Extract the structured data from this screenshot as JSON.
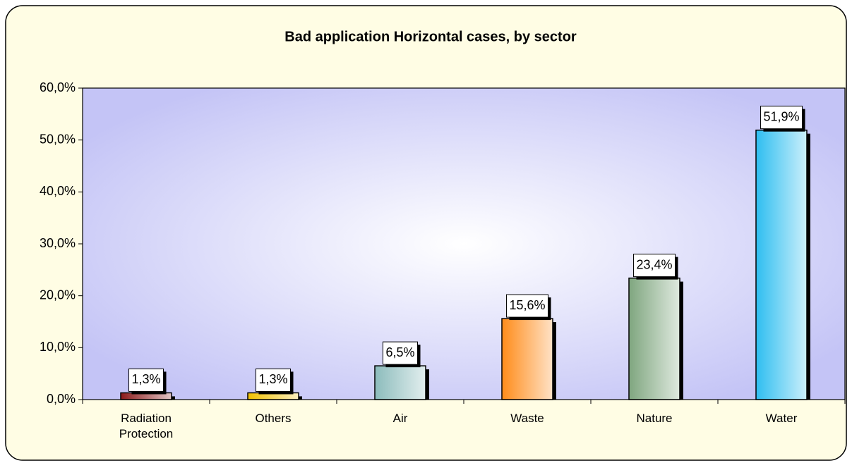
{
  "chart_data": {
    "type": "bar",
    "title": "Bad application Horizontal cases, by sector",
    "categories": [
      "Radiation Protection",
      "Others",
      "Air",
      "Waste",
      "Nature",
      "Water"
    ],
    "values": [
      1.3,
      1.3,
      6.5,
      15.6,
      23.4,
      51.9
    ],
    "value_labels": [
      "1,3%",
      "1,3%",
      "6,5%",
      "15,6%",
      "23,4%",
      "51,9%"
    ],
    "colors": [
      "#8b1a1a",
      "#f0c000",
      "#8cbcbc",
      "#ff8c1a",
      "#7fa67f",
      "#2ebef0"
    ],
    "ylim": [
      0,
      60
    ],
    "yticks": [
      {
        "value": 0,
        "label": "0,0%"
      },
      {
        "value": 10,
        "label": "10,0%"
      },
      {
        "value": 20,
        "label": "20,0%"
      },
      {
        "value": 30,
        "label": "30,0%"
      },
      {
        "value": 40,
        "label": "40,0%"
      },
      {
        "value": 50,
        "label": "50,0%"
      },
      {
        "value": 60,
        "label": "60,0%"
      }
    ]
  }
}
